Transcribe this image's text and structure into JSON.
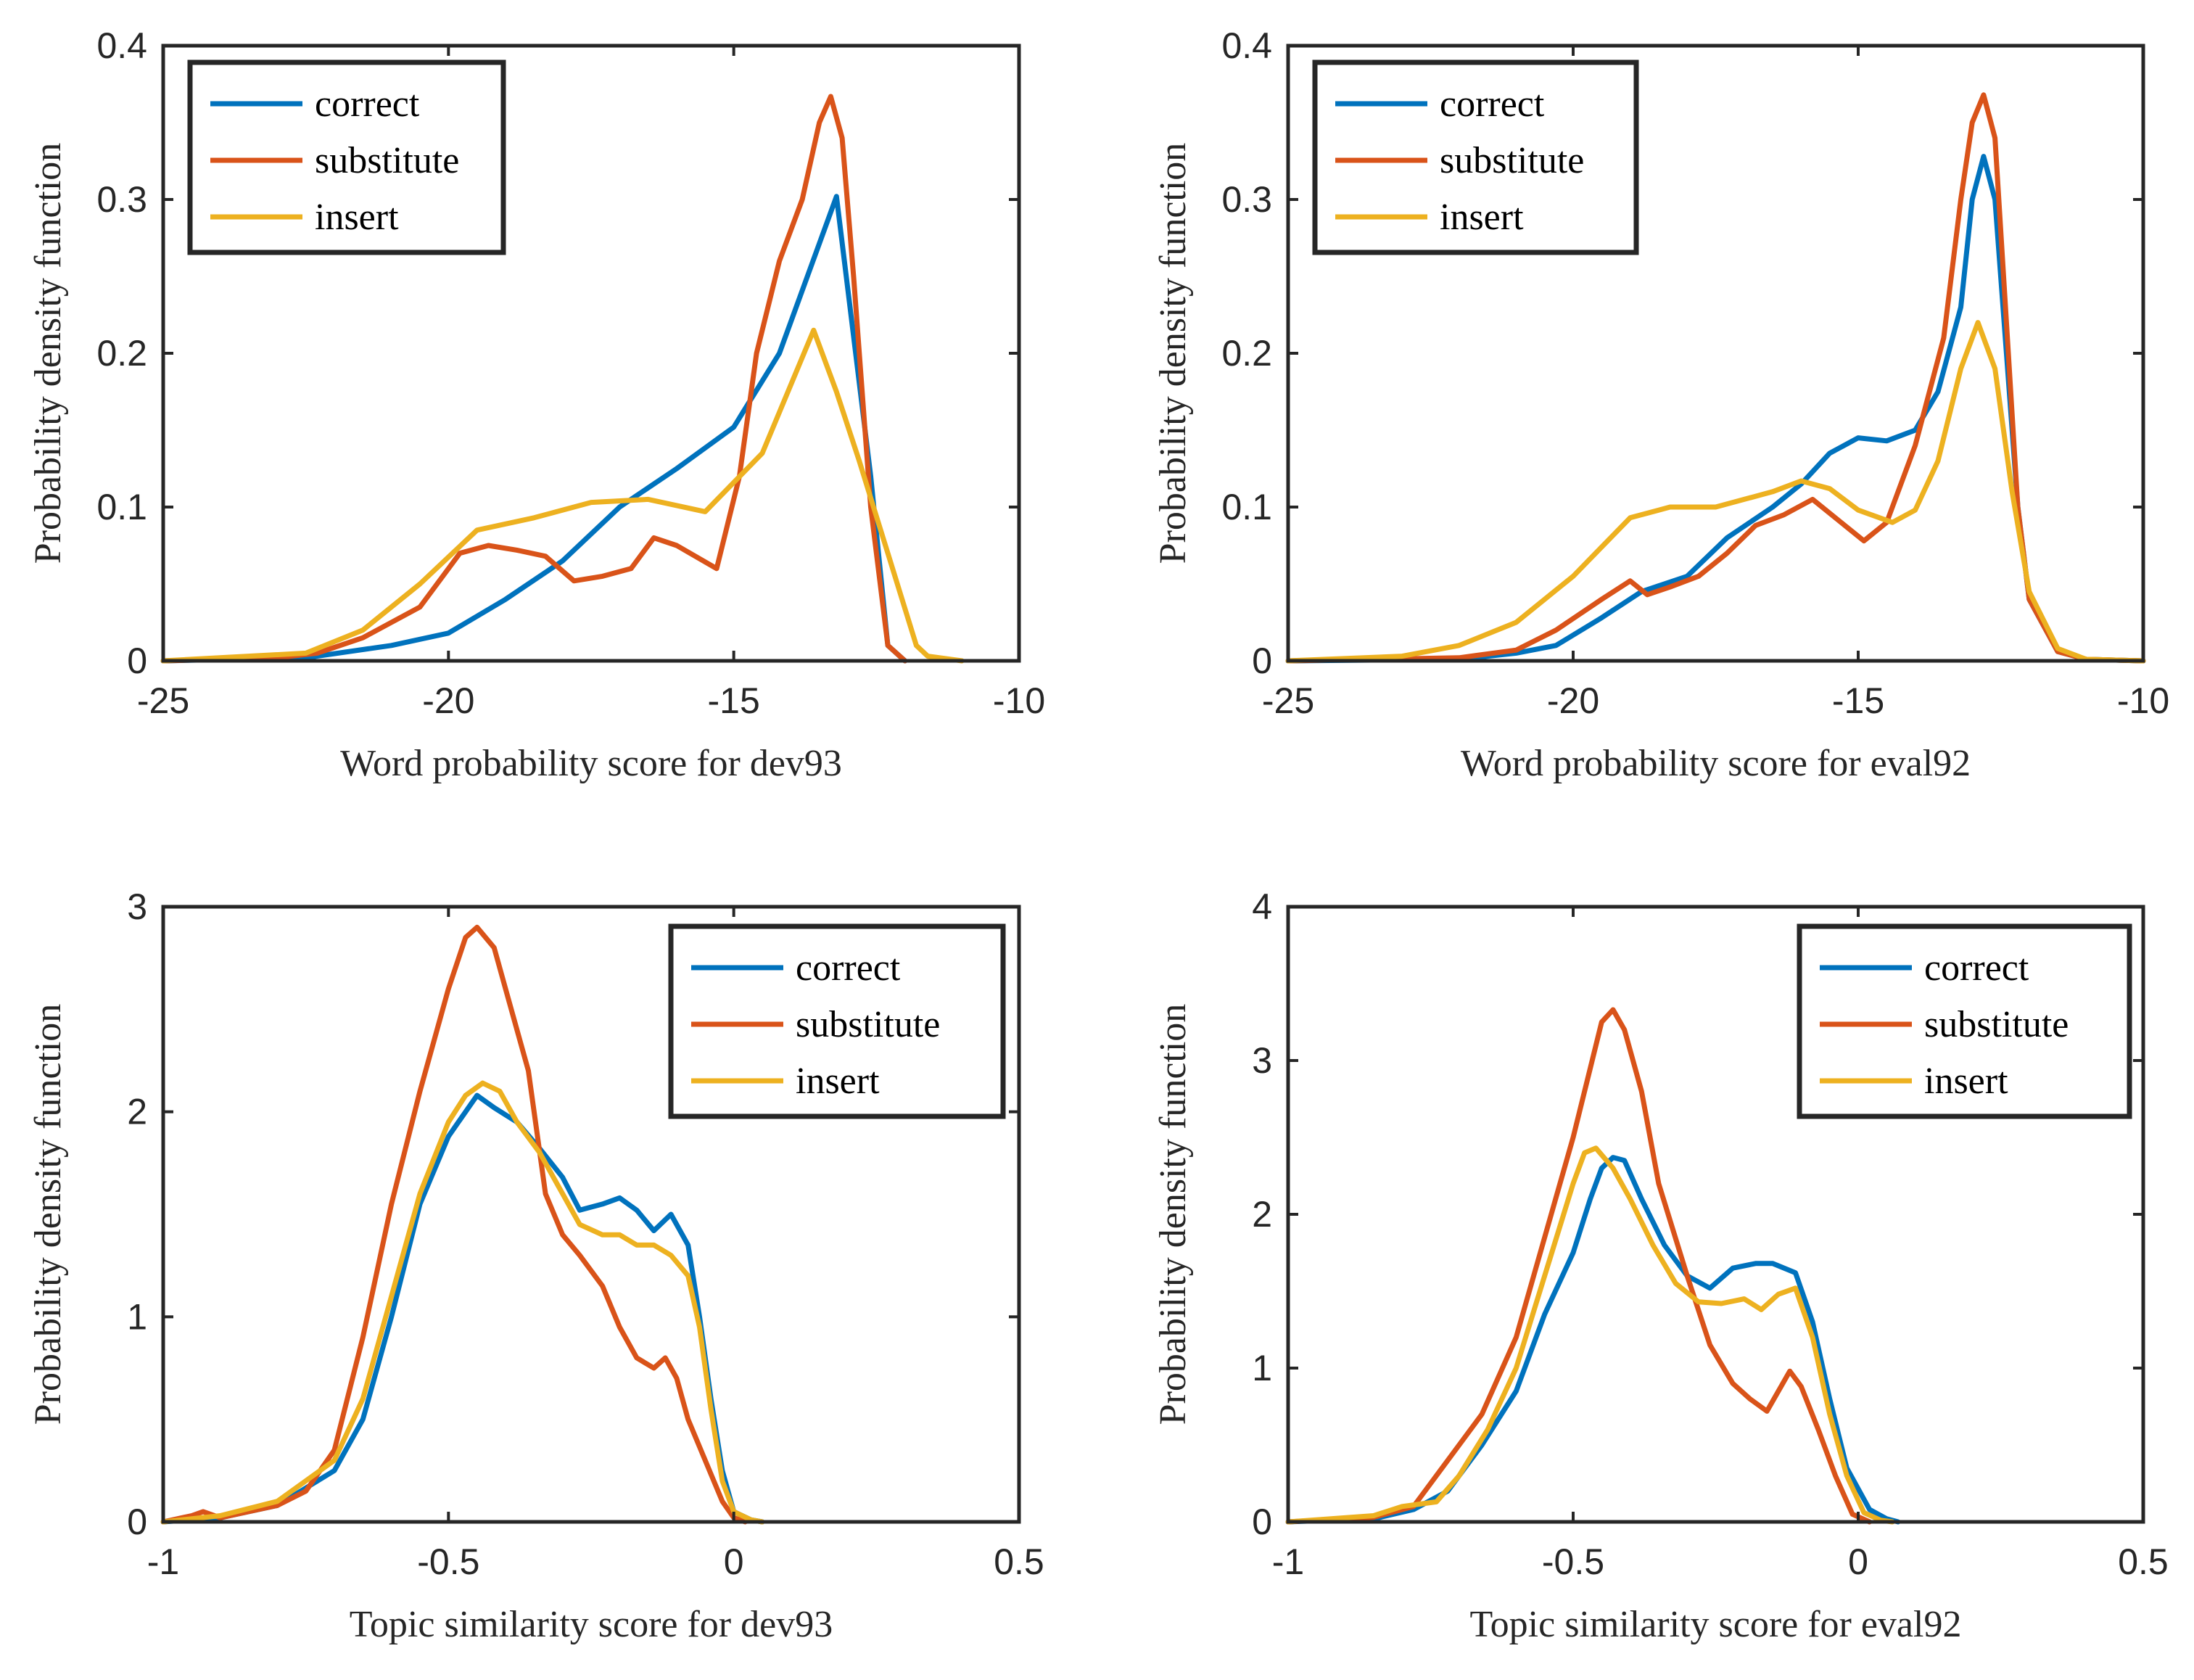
{
  "chart_data": [
    {
      "type": "line",
      "xlabel": "Word probability score for dev93",
      "ylabel": "Probability density function",
      "xlim": [
        -25,
        -10
      ],
      "ylim": [
        0,
        0.4
      ],
      "xticks": [
        -25,
        -20,
        -15,
        -10
      ],
      "xtick_labels": [
        "-25",
        "-20",
        "-15",
        "-10"
      ],
      "yticks": [
        0,
        0.1,
        0.2,
        0.3,
        0.4
      ],
      "ytick_labels": [
        "0",
        "0.1",
        "0.2",
        "0.3",
        "0.4"
      ],
      "legend_position": "top-left",
      "series": [
        {
          "name": "correct",
          "color": "#0072BD",
          "x": [
            -25,
            -22.5,
            -21,
            -20,
            -19,
            -18,
            -17,
            -16,
            -15,
            -14.2,
            -13.2,
            -12.6,
            -12.3,
            -12
          ],
          "y": [
            0,
            0.002,
            0.01,
            0.018,
            0.04,
            0.065,
            0.1,
            0.125,
            0.152,
            0.2,
            0.302,
            0.12,
            0.01,
            0
          ]
        },
        {
          "name": "substitute",
          "color": "#D95319",
          "x": [
            -25,
            -23,
            -22.3,
            -21.5,
            -20.5,
            -19.8,
            -19.3,
            -18.8,
            -18.3,
            -17.8,
            -17.3,
            -16.8,
            -16.4,
            -16,
            -15.3,
            -14.9,
            -14.6,
            -14.2,
            -13.8,
            -13.5,
            -13.3,
            -13.1,
            -12.9,
            -12.6,
            -12.3,
            -12
          ],
          "y": [
            0,
            0.002,
            0.005,
            0.015,
            0.035,
            0.07,
            0.075,
            0.072,
            0.068,
            0.052,
            0.055,
            0.06,
            0.08,
            0.075,
            0.06,
            0.12,
            0.2,
            0.26,
            0.3,
            0.35,
            0.367,
            0.34,
            0.25,
            0.1,
            0.01,
            0
          ]
        },
        {
          "name": "insert",
          "color": "#EDB120",
          "x": [
            -25,
            -22.5,
            -21.5,
            -20.5,
            -19.5,
            -18.5,
            -17.5,
            -16.5,
            -15.5,
            -14.5,
            -13.6,
            -13.2,
            -12.8,
            -12.3,
            -11.8,
            -11.6,
            -11
          ],
          "y": [
            0,
            0.005,
            0.02,
            0.05,
            0.085,
            0.093,
            0.103,
            0.105,
            0.097,
            0.135,
            0.215,
            0.175,
            0.13,
            0.07,
            0.01,
            0.003,
            0
          ]
        }
      ]
    },
    {
      "type": "line",
      "xlabel": "Word probability score for eval92",
      "ylabel": "Probability density function",
      "xlim": [
        -25,
        -10
      ],
      "ylim": [
        0,
        0.4
      ],
      "xticks": [
        -25,
        -20,
        -15,
        -10
      ],
      "xtick_labels": [
        "-25",
        "-20",
        "-15",
        "-10"
      ],
      "yticks": [
        0,
        0.1,
        0.2,
        0.3,
        0.4
      ],
      "ytick_labels": [
        "0",
        "0.1",
        "0.2",
        "0.3",
        "0.4"
      ],
      "legend_position": "top-left",
      "series": [
        {
          "name": "correct",
          "color": "#0072BD",
          "x": [
            -25,
            -22,
            -21,
            -20.3,
            -19.5,
            -18.8,
            -18,
            -17.3,
            -16.5,
            -16,
            -15.5,
            -15,
            -14.5,
            -14,
            -13.6,
            -13.2,
            -13,
            -12.8,
            -12.6,
            -12.4,
            -12.2,
            -12,
            -11.5,
            -11,
            -10
          ],
          "y": [
            0,
            0.001,
            0.005,
            0.01,
            0.028,
            0.045,
            0.055,
            0.08,
            0.1,
            0.115,
            0.135,
            0.145,
            0.143,
            0.15,
            0.175,
            0.23,
            0.3,
            0.328,
            0.3,
            0.2,
            0.1,
            0.04,
            0.006,
            0.001,
            0
          ]
        },
        {
          "name": "substitute",
          "color": "#D95319",
          "x": [
            -25,
            -22,
            -21,
            -20.3,
            -19.5,
            -19,
            -18.7,
            -18.3,
            -17.8,
            -17.3,
            -16.8,
            -16.3,
            -15.8,
            -15.3,
            -14.9,
            -14.5,
            -14,
            -13.5,
            -13.2,
            -13,
            -12.8,
            -12.6,
            -12.4,
            -12.2,
            -12,
            -11.5,
            -11,
            -10
          ],
          "y": [
            0,
            0.002,
            0.007,
            0.02,
            0.04,
            0.052,
            0.043,
            0.048,
            0.055,
            0.07,
            0.088,
            0.095,
            0.105,
            0.09,
            0.078,
            0.09,
            0.14,
            0.21,
            0.3,
            0.35,
            0.368,
            0.34,
            0.22,
            0.1,
            0.04,
            0.006,
            0.001,
            0
          ]
        },
        {
          "name": "insert",
          "color": "#EDB120",
          "x": [
            -25,
            -23,
            -22,
            -21,
            -20,
            -19,
            -18.3,
            -17.5,
            -16.5,
            -16,
            -15.5,
            -15,
            -14.4,
            -14,
            -13.6,
            -13.2,
            -12.9,
            -12.6,
            -12.3,
            -12,
            -11.5,
            -11,
            -10
          ],
          "y": [
            0,
            0.003,
            0.01,
            0.025,
            0.055,
            0.093,
            0.1,
            0.1,
            0.11,
            0.117,
            0.112,
            0.098,
            0.09,
            0.098,
            0.13,
            0.19,
            0.22,
            0.19,
            0.11,
            0.045,
            0.008,
            0.001,
            0
          ]
        }
      ]
    },
    {
      "type": "line",
      "xlabel": "Topic similarity score for dev93",
      "ylabel": "Probability density function",
      "xlim": [
        -1,
        0.5
      ],
      "ylim": [
        0,
        3
      ],
      "xticks": [
        -1,
        -0.5,
        0,
        0.5
      ],
      "xtick_labels": [
        "-1",
        "-0.5",
        "0",
        "0.5"
      ],
      "yticks": [
        0,
        1,
        2,
        3
      ],
      "ytick_labels": [
        "0",
        "1",
        "2",
        "3"
      ],
      "legend_position": "top-right",
      "series": [
        {
          "name": "correct",
          "color": "#0072BD",
          "x": [
            -1,
            -0.9,
            -0.8,
            -0.7,
            -0.65,
            -0.6,
            -0.55,
            -0.5,
            -0.47,
            -0.45,
            -0.42,
            -0.38,
            -0.34,
            -0.3,
            -0.27,
            -0.23,
            -0.2,
            -0.17,
            -0.14,
            -0.11,
            -0.08,
            -0.06,
            -0.04,
            -0.02,
            0,
            0.03,
            0.05
          ],
          "y": [
            0,
            0.02,
            0.08,
            0.25,
            0.5,
            1.0,
            1.55,
            1.88,
            2.0,
            2.08,
            2.02,
            1.95,
            1.82,
            1.68,
            1.52,
            1.55,
            1.58,
            1.52,
            1.42,
            1.5,
            1.35,
            1.0,
            0.6,
            0.25,
            0.05,
            0.01,
            0
          ]
        },
        {
          "name": "substitute",
          "color": "#D95319",
          "x": [
            -1,
            -0.95,
            -0.93,
            -0.9,
            -0.8,
            -0.75,
            -0.7,
            -0.65,
            -0.6,
            -0.55,
            -0.5,
            -0.47,
            -0.45,
            -0.42,
            -0.4,
            -0.36,
            -0.33,
            -0.3,
            -0.27,
            -0.23,
            -0.2,
            -0.17,
            -0.14,
            -0.12,
            -0.1,
            -0.08,
            -0.05,
            -0.02,
            0,
            0.02
          ],
          "y": [
            0,
            0.03,
            0.05,
            0.02,
            0.08,
            0.15,
            0.35,
            0.9,
            1.55,
            2.1,
            2.6,
            2.85,
            2.9,
            2.8,
            2.6,
            2.2,
            1.6,
            1.4,
            1.3,
            1.15,
            0.95,
            0.8,
            0.75,
            0.8,
            0.7,
            0.5,
            0.3,
            0.1,
            0.02,
            0
          ]
        },
        {
          "name": "insert",
          "color": "#EDB120",
          "x": [
            -1,
            -0.9,
            -0.8,
            -0.7,
            -0.65,
            -0.6,
            -0.55,
            -0.5,
            -0.47,
            -0.44,
            -0.41,
            -0.38,
            -0.34,
            -0.3,
            -0.27,
            -0.23,
            -0.2,
            -0.17,
            -0.14,
            -0.11,
            -0.08,
            -0.06,
            -0.04,
            -0.02,
            0,
            0.03,
            0.05
          ],
          "y": [
            0,
            0.03,
            0.1,
            0.3,
            0.6,
            1.1,
            1.6,
            1.95,
            2.08,
            2.14,
            2.1,
            1.95,
            1.8,
            1.6,
            1.45,
            1.4,
            1.4,
            1.35,
            1.35,
            1.3,
            1.2,
            0.95,
            0.55,
            0.2,
            0.05,
            0.01,
            0
          ]
        }
      ]
    },
    {
      "type": "line",
      "xlabel": "Topic similarity score for eval92",
      "ylabel": "Probability density function",
      "xlim": [
        -1,
        0.5
      ],
      "ylim": [
        0,
        4
      ],
      "xticks": [
        -1,
        -0.5,
        0,
        0.5
      ],
      "xtick_labels": [
        "-1",
        "-0.5",
        "0",
        "0.5"
      ],
      "yticks": [
        0,
        1,
        2,
        3,
        4
      ],
      "ytick_labels": [
        "0",
        "1",
        "2",
        "3",
        "4"
      ],
      "legend_position": "top-right",
      "series": [
        {
          "name": "correct",
          "color": "#0072BD",
          "x": [
            -1,
            -0.85,
            -0.78,
            -0.72,
            -0.66,
            -0.6,
            -0.55,
            -0.5,
            -0.47,
            -0.45,
            -0.43,
            -0.41,
            -0.38,
            -0.34,
            -0.3,
            -0.26,
            -0.22,
            -0.18,
            -0.15,
            -0.11,
            -0.08,
            -0.05,
            -0.02,
            0.02,
            0.05,
            0.07
          ],
          "y": [
            0,
            0.02,
            0.08,
            0.2,
            0.5,
            0.85,
            1.35,
            1.75,
            2.1,
            2.3,
            2.37,
            2.35,
            2.1,
            1.8,
            1.6,
            1.52,
            1.65,
            1.68,
            1.68,
            1.62,
            1.3,
            0.8,
            0.35,
            0.08,
            0.02,
            0
          ]
        },
        {
          "name": "substitute",
          "color": "#D95319",
          "x": [
            -1,
            -0.85,
            -0.78,
            -0.72,
            -0.66,
            -0.6,
            -0.55,
            -0.5,
            -0.47,
            -0.45,
            -0.43,
            -0.41,
            -0.38,
            -0.35,
            -0.3,
            -0.26,
            -0.22,
            -0.19,
            -0.16,
            -0.14,
            -0.12,
            -0.1,
            -0.07,
            -0.04,
            -0.01,
            0.02
          ],
          "y": [
            0,
            0.03,
            0.1,
            0.4,
            0.7,
            1.2,
            1.85,
            2.5,
            2.95,
            3.25,
            3.33,
            3.2,
            2.8,
            2.2,
            1.6,
            1.15,
            0.9,
            0.8,
            0.72,
            0.85,
            0.98,
            0.88,
            0.6,
            0.3,
            0.05,
            0
          ]
        },
        {
          "name": "insert",
          "color": "#EDB120",
          "x": [
            -1,
            -0.85,
            -0.8,
            -0.74,
            -0.7,
            -0.65,
            -0.6,
            -0.55,
            -0.5,
            -0.48,
            -0.46,
            -0.43,
            -0.4,
            -0.36,
            -0.32,
            -0.28,
            -0.24,
            -0.2,
            -0.17,
            -0.14,
            -0.11,
            -0.08,
            -0.05,
            -0.02,
            0.01,
            0.04,
            0.06
          ],
          "y": [
            0,
            0.04,
            0.1,
            0.13,
            0.3,
            0.6,
            1.0,
            1.6,
            2.2,
            2.4,
            2.43,
            2.3,
            2.1,
            1.8,
            1.55,
            1.43,
            1.42,
            1.45,
            1.38,
            1.48,
            1.52,
            1.2,
            0.7,
            0.3,
            0.06,
            0.01,
            0
          ]
        }
      ]
    }
  ]
}
